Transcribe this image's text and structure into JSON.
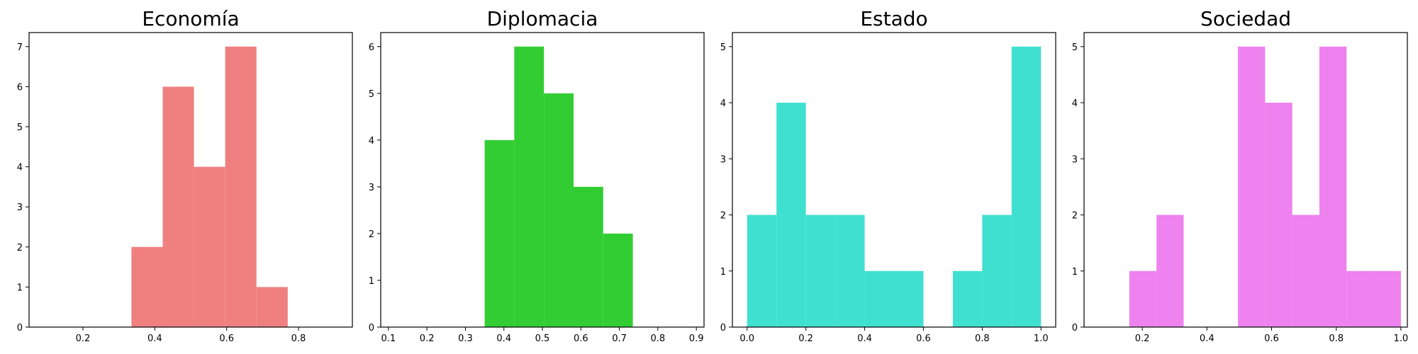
{
  "chart_data": [
    {
      "type": "histogram",
      "title": "Economía",
      "color": "#f08080",
      "xlim": [
        0.05,
        0.95
      ],
      "ylim": [
        0,
        7.35
      ],
      "xticks": [
        0.2,
        0.4,
        0.6,
        0.8
      ],
      "xtick_labels": [
        "0.2",
        "0.4",
        "0.6",
        "0.8"
      ],
      "yticks": [
        0,
        1,
        2,
        3,
        4,
        5,
        6,
        7
      ],
      "ytick_labels": [
        "0",
        "1",
        "2",
        "3",
        "4",
        "5",
        "6",
        "7"
      ],
      "bins": [
        {
          "x0": 0.335,
          "x1": 0.422,
          "count": 2
        },
        {
          "x0": 0.422,
          "x1": 0.509,
          "count": 6
        },
        {
          "x0": 0.509,
          "x1": 0.596,
          "count": 4
        },
        {
          "x0": 0.596,
          "x1": 0.683,
          "count": 7
        },
        {
          "x0": 0.683,
          "x1": 0.77,
          "count": 1
        }
      ]
    },
    {
      "type": "histogram",
      "title": "Diplomacia",
      "color": "#32cd32",
      "xlim": [
        0.08,
        0.92
      ],
      "ylim": [
        0,
        6.3
      ],
      "xticks": [
        0.1,
        0.2,
        0.3,
        0.4,
        0.5,
        0.6,
        0.7,
        0.8,
        0.9
      ],
      "xtick_labels": [
        "0.1",
        "0.2",
        "0.3",
        "0.4",
        "0.5",
        "0.6",
        "0.7",
        "0.8",
        "0.9"
      ],
      "yticks": [
        0,
        1,
        2,
        3,
        4,
        5,
        6
      ],
      "ytick_labels": [
        "0",
        "1",
        "2",
        "3",
        "4",
        "5",
        "6"
      ],
      "bins": [
        {
          "x0": 0.35,
          "x1": 0.427,
          "count": 4
        },
        {
          "x0": 0.427,
          "x1": 0.504,
          "count": 6
        },
        {
          "x0": 0.504,
          "x1": 0.581,
          "count": 5
        },
        {
          "x0": 0.581,
          "x1": 0.658,
          "count": 3
        },
        {
          "x0": 0.658,
          "x1": 0.735,
          "count": 2
        }
      ]
    },
    {
      "type": "histogram",
      "title": "Estado",
      "color": "#40e0d0",
      "xlim": [
        -0.05,
        1.05
      ],
      "ylim": [
        0,
        5.25
      ],
      "xticks": [
        0.0,
        0.2,
        0.4,
        0.6,
        0.8,
        1.0
      ],
      "xtick_labels": [
        "0.0",
        "0.2",
        "0.4",
        "0.6",
        "0.8",
        "1.0"
      ],
      "yticks": [
        0,
        1,
        2,
        3,
        4,
        5
      ],
      "ytick_labels": [
        "0",
        "1",
        "2",
        "3",
        "4",
        "5"
      ],
      "bins": [
        {
          "x0": 0.0,
          "x1": 0.1,
          "count": 2
        },
        {
          "x0": 0.1,
          "x1": 0.2,
          "count": 4
        },
        {
          "x0": 0.2,
          "x1": 0.3,
          "count": 2
        },
        {
          "x0": 0.3,
          "x1": 0.4,
          "count": 2
        },
        {
          "x0": 0.4,
          "x1": 0.5,
          "count": 1
        },
        {
          "x0": 0.5,
          "x1": 0.6,
          "count": 1
        },
        {
          "x0": 0.6,
          "x1": 0.7,
          "count": 0
        },
        {
          "x0": 0.7,
          "x1": 0.8,
          "count": 1
        },
        {
          "x0": 0.8,
          "x1": 0.9,
          "count": 2
        },
        {
          "x0": 0.9,
          "x1": 1.0,
          "count": 5
        }
      ]
    },
    {
      "type": "histogram",
      "title": "Sociedad",
      "color": "#ee82ee",
      "xlim": [
        0.02,
        1.02
      ],
      "ylim": [
        0,
        5.25
      ],
      "xticks": [
        0.2,
        0.4,
        0.6,
        0.8,
        1.0
      ],
      "xtick_labels": [
        "0.2",
        "0.4",
        "0.6",
        "0.8",
        "1.0"
      ],
      "yticks": [
        0,
        1,
        2,
        3,
        4,
        5
      ],
      "ytick_labels": [
        "0",
        "1",
        "2",
        "3",
        "4",
        "5"
      ],
      "bins": [
        {
          "x0": 0.16,
          "x1": 0.244,
          "count": 1
        },
        {
          "x0": 0.244,
          "x1": 0.328,
          "count": 2
        },
        {
          "x0": 0.328,
          "x1": 0.412,
          "count": 0
        },
        {
          "x0": 0.412,
          "x1": 0.496,
          "count": 0
        },
        {
          "x0": 0.496,
          "x1": 0.58,
          "count": 5
        },
        {
          "x0": 0.58,
          "x1": 0.664,
          "count": 4
        },
        {
          "x0": 0.664,
          "x1": 0.748,
          "count": 2
        },
        {
          "x0": 0.748,
          "x1": 0.832,
          "count": 5
        },
        {
          "x0": 0.832,
          "x1": 0.916,
          "count": 1
        },
        {
          "x0": 0.916,
          "x1": 1.0,
          "count": 1
        }
      ]
    }
  ]
}
